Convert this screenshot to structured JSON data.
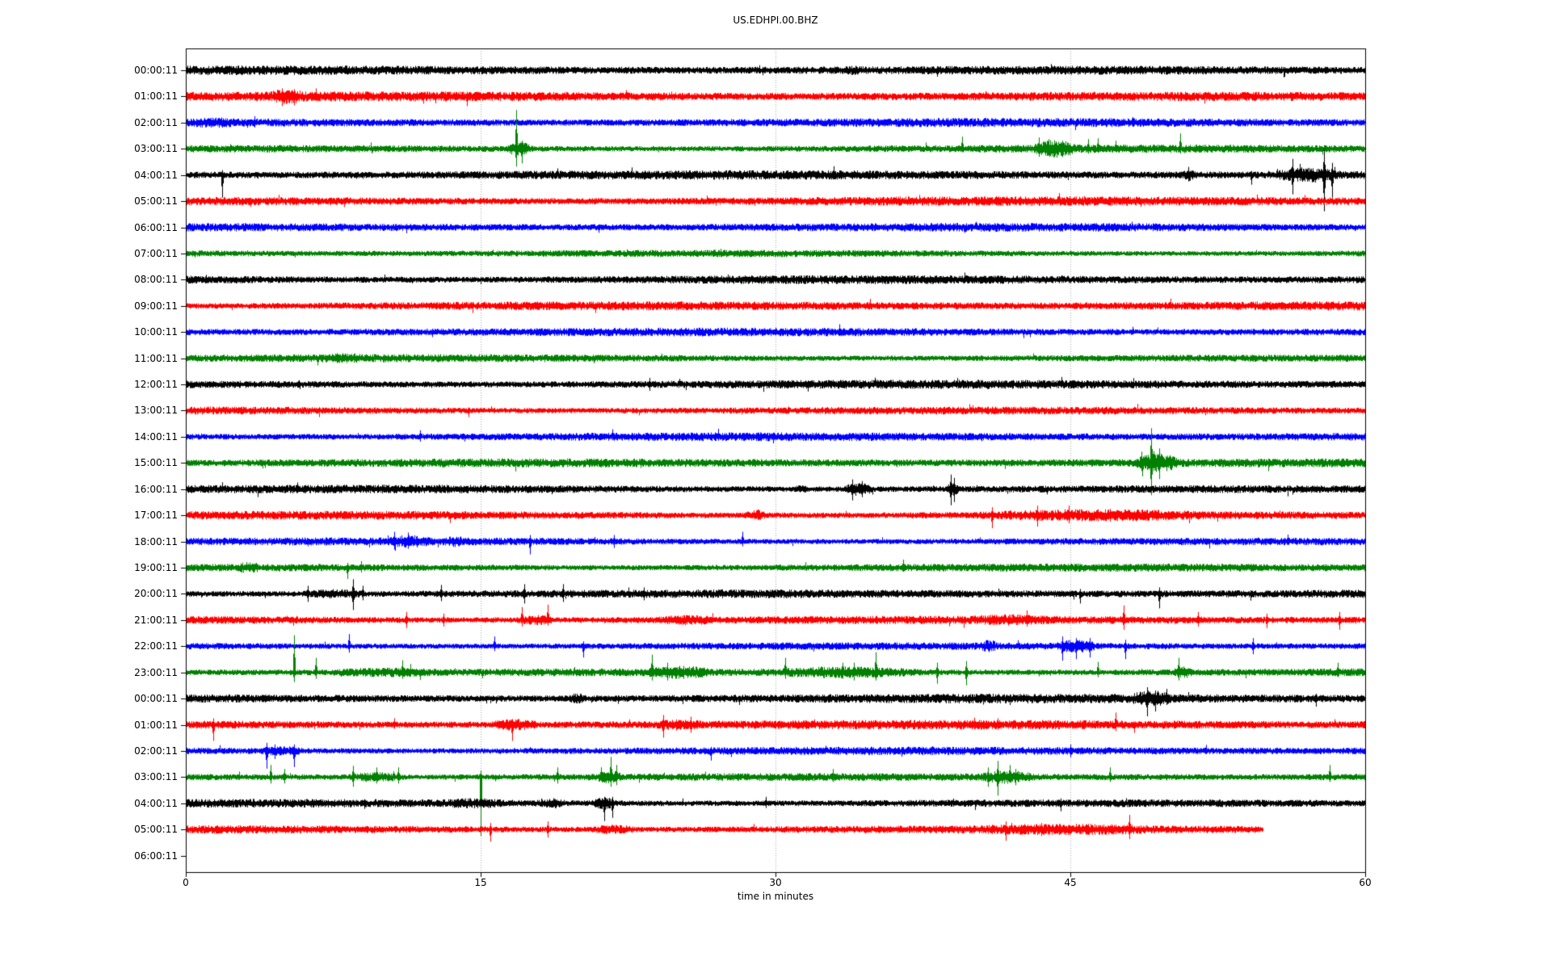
{
  "title": "US.EDHPI.00.BHZ",
  "chart_data": {
    "type": "line",
    "subtype": "helicorder-seismogram",
    "title": "US.EDHPI.00.BHZ",
    "xlabel": "time in minutes",
    "xlim": [
      0,
      60
    ],
    "x_ticks": [
      0,
      15,
      30,
      45,
      60
    ],
    "grid_x": [
      15,
      30,
      45
    ],
    "grid_on": true,
    "grid_color": "#a8a8a8",
    "background": "#ffffff",
    "color_cycle": [
      "#000000",
      "#ff0000",
      "#0000ff",
      "#008000"
    ],
    "y_labels": [
      "00:00:11",
      "01:00:11",
      "02:00:11",
      "03:00:11",
      "04:00:11",
      "05:00:11",
      "06:00:11",
      "07:00:11",
      "08:00:11",
      "09:00:11",
      "10:00:11",
      "11:00:11",
      "12:00:11",
      "13:00:11",
      "14:00:11",
      "15:00:11",
      "16:00:11",
      "17:00:11",
      "18:00:11",
      "19:00:11",
      "20:00:11",
      "21:00:11",
      "22:00:11",
      "23:00:11",
      "00:00:11",
      "01:00:11",
      "02:00:11",
      "03:00:11",
      "04:00:11",
      "05:00:11",
      "06:00:11"
    ],
    "rows": [
      {
        "label": "00:00:11",
        "color": "#000000",
        "end_minute": 60,
        "amp": 4.6,
        "bursts": [
          [
            33.5,
            34.3,
            1.5
          ]
        ],
        "spikes": [
          [
            38.2,
            5,
            8
          ],
          [
            55.9,
            4,
            8
          ]
        ]
      },
      {
        "label": "01:00:11",
        "color": "#ff0000",
        "end_minute": 60,
        "amp": 4.8,
        "bursts": [
          [
            4.3,
            6.0,
            4
          ]
        ],
        "spikes": [
          [
            4.9,
            10,
            12
          ],
          [
            5.5,
            9,
            11
          ],
          [
            6.6,
            10,
            5
          ],
          [
            12.1,
            5,
            9
          ],
          [
            14.3,
            4,
            12
          ]
        ]
      },
      {
        "label": "02:00:11",
        "color": "#0000ff",
        "end_minute": 60,
        "amp": 4.4,
        "bursts": [
          [
            0.3,
            2.6,
            1.5
          ]
        ],
        "spikes": [
          [
            3.5,
            8,
            6
          ]
        ]
      },
      {
        "label": "03:00:11",
        "color": "#008000",
        "end_minute": 60,
        "amp": 4.4,
        "bursts": [
          [
            16.2,
            17.7,
            5
          ],
          [
            43.1,
            45.4,
            6
          ]
        ],
        "spikes": [
          [
            16.8,
            48,
            22
          ],
          [
            17.1,
            10,
            18
          ],
          [
            39.5,
            15,
            4
          ],
          [
            43.4,
            14,
            10
          ],
          [
            43.9,
            12,
            8
          ],
          [
            44.6,
            10,
            8
          ],
          [
            45.9,
            12,
            6
          ],
          [
            46.4,
            13,
            5
          ],
          [
            47.3,
            10,
            4
          ],
          [
            50.6,
            19,
            6
          ]
        ]
      },
      {
        "label": "04:00:11",
        "color": "#000000",
        "end_minute": 60,
        "amp": 4.6,
        "bursts": [
          [
            50.7,
            51.4,
            3
          ],
          [
            55.3,
            58.8,
            5
          ]
        ],
        "spikes": [
          [
            1.85,
            6,
            28
          ],
          [
            51.0,
            10,
            8
          ],
          [
            54.2,
            5,
            12
          ],
          [
            56.3,
            20,
            24
          ],
          [
            57.9,
            32,
            45
          ],
          [
            58.3,
            15,
            28
          ]
        ]
      },
      {
        "label": "05:00:11",
        "color": "#ff0000",
        "end_minute": 60,
        "amp": 4.8,
        "bursts": [],
        "spikes": []
      },
      {
        "label": "06:00:11",
        "color": "#0000ff",
        "end_minute": 60,
        "amp": 4.2,
        "bursts": [],
        "spikes": []
      },
      {
        "label": "07:00:11",
        "color": "#008000",
        "end_minute": 60,
        "amp": 4.2,
        "bursts": [],
        "spikes": []
      },
      {
        "label": "08:00:11",
        "color": "#000000",
        "end_minute": 60,
        "amp": 5.2,
        "bursts": [],
        "spikes": []
      },
      {
        "label": "09:00:11",
        "color": "#ff0000",
        "end_minute": 60,
        "amp": 4.8,
        "bursts": [],
        "spikes": []
      },
      {
        "label": "10:00:11",
        "color": "#0000ff",
        "end_minute": 60,
        "amp": 4.2,
        "bursts": [],
        "spikes": []
      },
      {
        "label": "11:00:11",
        "color": "#008000",
        "end_minute": 60,
        "amp": 4.2,
        "bursts": [
          [
            7.0,
            9.0,
            1.5
          ]
        ],
        "spikes": []
      },
      {
        "label": "12:00:11",
        "color": "#000000",
        "end_minute": 60,
        "amp": 4.6,
        "bursts": [],
        "spikes": [
          [
            23.6,
            8,
            8
          ]
        ]
      },
      {
        "label": "13:00:11",
        "color": "#ff0000",
        "end_minute": 60,
        "amp": 4.6,
        "bursts": [],
        "spikes": [
          [
            14.4,
            4,
            8
          ]
        ]
      },
      {
        "label": "14:00:11",
        "color": "#0000ff",
        "end_minute": 60,
        "amp": 4.4,
        "bursts": [],
        "spikes": [
          [
            11.9,
            8,
            6
          ]
        ]
      },
      {
        "label": "15:00:11",
        "color": "#008000",
        "end_minute": 60,
        "amp": 4.4,
        "bursts": [
          [
            48.2,
            50.6,
            7
          ]
        ],
        "spikes": [
          [
            48.6,
            14,
            10
          ],
          [
            49.1,
            43,
            40
          ],
          [
            49.5,
            18,
            20
          ]
        ]
      },
      {
        "label": "16:00:11",
        "color": "#000000",
        "end_minute": 60,
        "amp": 4.6,
        "bursts": [
          [
            31.0,
            31.6,
            2
          ],
          [
            33.4,
            35.0,
            5
          ],
          [
            38.6,
            39.4,
            4
          ]
        ],
        "spikes": [
          [
            33.9,
            12,
            14
          ],
          [
            34.4,
            10,
            10
          ],
          [
            38.9,
            18,
            20
          ],
          [
            39.1,
            14,
            16
          ]
        ]
      },
      {
        "label": "17:00:11",
        "color": "#ff0000",
        "end_minute": 60,
        "amp": 4.6,
        "bursts": [
          [
            28.4,
            29.5,
            4
          ],
          [
            40.0,
            52.0,
            3
          ]
        ],
        "spikes": [
          [
            41.0,
            10,
            16
          ],
          [
            43.3,
            12,
            14
          ],
          [
            44.9,
            12,
            10
          ],
          [
            47.0,
            8,
            8
          ]
        ]
      },
      {
        "label": "18:00:11",
        "color": "#0000ff",
        "end_minute": 60,
        "amp": 4.4,
        "bursts": [
          [
            10.2,
            12.4,
            3
          ],
          [
            13.2,
            14.2,
            2
          ]
        ],
        "spikes": [
          [
            10.6,
            12,
            10
          ],
          [
            11.3,
            11,
            9
          ],
          [
            17.5,
            8,
            16
          ],
          [
            21.8,
            8,
            8
          ],
          [
            28.3,
            12,
            6
          ]
        ]
      },
      {
        "label": "19:00:11",
        "color": "#008000",
        "end_minute": 60,
        "amp": 4.4,
        "bursts": [
          [
            2.6,
            3.8,
            2.5
          ]
        ],
        "spikes": [
          [
            8.2,
            6,
            14
          ],
          [
            8.9,
            8,
            6
          ],
          [
            36.5,
            10,
            5
          ]
        ]
      },
      {
        "label": "20:00:11",
        "color": "#000000",
        "end_minute": 60,
        "amp": 4.6,
        "bursts": [
          [
            5.8,
            9.3,
            2.5
          ]
        ],
        "spikes": [
          [
            6.2,
            10,
            10
          ],
          [
            8.5,
            18,
            20
          ],
          [
            9.0,
            10,
            8
          ],
          [
            13.0,
            11,
            9
          ],
          [
            17.2,
            12,
            12
          ],
          [
            19.2,
            12,
            10
          ],
          [
            23.3,
            8,
            8
          ],
          [
            45.5,
            6,
            12
          ],
          [
            49.5,
            8,
            18
          ]
        ]
      },
      {
        "label": "21:00:11",
        "color": "#ff0000",
        "end_minute": 60,
        "amp": 4.8,
        "bursts": [
          [
            16.8,
            18.8,
            3
          ],
          [
            24.0,
            27.0,
            2.5
          ],
          [
            40.0,
            44.0,
            2
          ]
        ],
        "spikes": [
          [
            11.2,
            10,
            10
          ],
          [
            13.1,
            8,
            8
          ],
          [
            17.1,
            16,
            8
          ],
          [
            18.4,
            19,
            7
          ],
          [
            42.8,
            12,
            8
          ],
          [
            47.7,
            18,
            12
          ],
          [
            51.5,
            10,
            8
          ],
          [
            55.0,
            8,
            10
          ],
          [
            58.7,
            10,
            12
          ]
        ]
      },
      {
        "label": "22:00:11",
        "color": "#0000ff",
        "end_minute": 60,
        "amp": 4.4,
        "bursts": [
          [
            40.4,
            41.3,
            3.5
          ],
          [
            44.2,
            46.4,
            4.5
          ]
        ],
        "spikes": [
          [
            8.3,
            15,
            8
          ],
          [
            15.7,
            12,
            6
          ],
          [
            20.2,
            6,
            14
          ],
          [
            44.6,
            12,
            18
          ],
          [
            45.3,
            10,
            16
          ],
          [
            46.0,
            10,
            14
          ],
          [
            47.8,
            8,
            16
          ],
          [
            54.3,
            10,
            10
          ]
        ]
      },
      {
        "label": "23:00:11",
        "color": "#008000",
        "end_minute": 60,
        "amp": 4.6,
        "bursts": [
          [
            7.0,
            13.0,
            2
          ],
          [
            23.3,
            26.8,
            3.5
          ],
          [
            29.8,
            37.5,
            3.5
          ],
          [
            50.2,
            51.2,
            4
          ]
        ],
        "spikes": [
          [
            5.5,
            46,
            12
          ],
          [
            6.6,
            18,
            8
          ],
          [
            11.0,
            15,
            8
          ],
          [
            23.7,
            22,
            10
          ],
          [
            24.5,
            12,
            10
          ],
          [
            30.5,
            18,
            8
          ],
          [
            33.4,
            12,
            8
          ],
          [
            34.0,
            12,
            10
          ],
          [
            35.1,
            25,
            10
          ],
          [
            38.2,
            12,
            14
          ],
          [
            39.7,
            14,
            16
          ],
          [
            46.4,
            13,
            6
          ],
          [
            50.5,
            18,
            10
          ],
          [
            58.6,
            12,
            6
          ]
        ]
      },
      {
        "label": "00:00:11",
        "color": "#000000",
        "end_minute": 60,
        "amp": 4.8,
        "bursts": [
          [
            19.3,
            20.4,
            2.5
          ],
          [
            48.0,
            50.2,
            4.5
          ]
        ],
        "spikes": [
          [
            41.9,
            5,
            8
          ],
          [
            48.9,
            14,
            22
          ],
          [
            49.3,
            10,
            16
          ],
          [
            49.9,
            12,
            8
          ],
          [
            57.5,
            6,
            10
          ]
        ]
      },
      {
        "label": "01:00:11",
        "color": "#ff0000",
        "end_minute": 60,
        "amp": 4.8,
        "bursts": [
          [
            15.5,
            18.0,
            3.5
          ],
          [
            23.9,
            26.3,
            2.5
          ]
        ],
        "spikes": [
          [
            1.4,
            8,
            20
          ],
          [
            10.6,
            8,
            5
          ],
          [
            16.6,
            7,
            20
          ],
          [
            24.3,
            12,
            16
          ],
          [
            25.7,
            10,
            10
          ],
          [
            41.3,
            8,
            6
          ],
          [
            47.3,
            15,
            8
          ]
        ]
      },
      {
        "label": "02:00:11",
        "color": "#0000ff",
        "end_minute": 60,
        "amp": 4.4,
        "bursts": [
          [
            3.8,
            6.0,
            2.5
          ]
        ],
        "spikes": [
          [
            4.1,
            10,
            22
          ],
          [
            4.5,
            8,
            10
          ],
          [
            5.5,
            8,
            20
          ],
          [
            26.7,
            5,
            12
          ],
          [
            45.0,
            8,
            8
          ]
        ]
      },
      {
        "label": "03:00:11",
        "color": "#008000",
        "end_minute": 60,
        "amp": 4.6,
        "bursts": [
          [
            8.2,
            11.2,
            3
          ],
          [
            20.8,
            22.3,
            4
          ],
          [
            40.4,
            43.2,
            4
          ]
        ],
        "spikes": [
          [
            4.3,
            15,
            8
          ],
          [
            5.0,
            10,
            8
          ],
          [
            8.5,
            14,
            12
          ],
          [
            9.7,
            12,
            8
          ],
          [
            10.8,
            12,
            8
          ],
          [
            15.0,
            8,
            73
          ],
          [
            18.9,
            12,
            8
          ],
          [
            21.6,
            25,
            12
          ],
          [
            21.9,
            15,
            10
          ],
          [
            32.9,
            10,
            6
          ],
          [
            40.8,
            12,
            12
          ],
          [
            41.3,
            20,
            23
          ],
          [
            42.2,
            10,
            10
          ],
          [
            47.0,
            12,
            6
          ],
          [
            58.2,
            15,
            6
          ]
        ]
      },
      {
        "label": "04:00:11",
        "color": "#000000",
        "end_minute": 60,
        "amp": 4.6,
        "bursts": [
          [
            13.0,
            16.2,
            2
          ],
          [
            18.0,
            19.3,
            2.5
          ],
          [
            20.6,
            21.9,
            4
          ]
        ],
        "spikes": [
          [
            21.3,
            8,
            22
          ],
          [
            21.7,
            8,
            18
          ],
          [
            29.5,
            8,
            6
          ],
          [
            44.5,
            6,
            10
          ]
        ]
      },
      {
        "label": "05:00:11",
        "color": "#ff0000",
        "end_minute": 54.8,
        "amp": 4.8,
        "bursts": [
          [
            20.5,
            23.0,
            2.5
          ],
          [
            40.0,
            49.5,
            2
          ]
        ],
        "spikes": [
          [
            15.5,
            8,
            15
          ],
          [
            18.4,
            10,
            10
          ],
          [
            41.7,
            10,
            14
          ],
          [
            43.5,
            8,
            8
          ],
          [
            48.0,
            18,
            12
          ]
        ]
      }
    ]
  }
}
